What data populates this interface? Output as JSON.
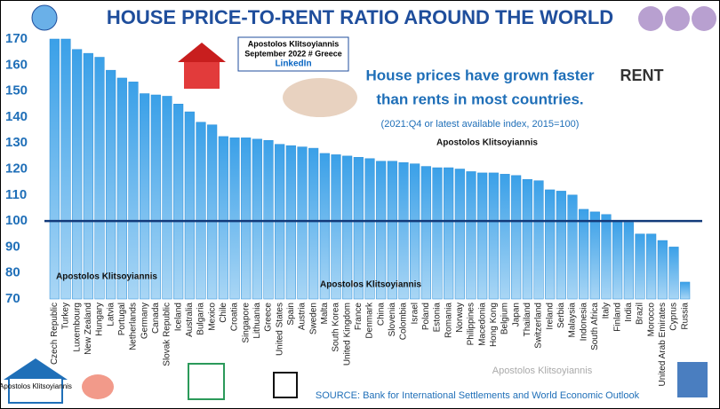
{
  "chart_data": {
    "type": "bar",
    "title": "HOUSE PRICE-TO-RENT RATIO AROUND THE WORLD",
    "annotation": "House prices have grown faster",
    "annotation_line2": "than rents in most countries.",
    "note": "(2021:Q4 or latest available index, 2015=100)",
    "source": "SOURCE: Bank for International Settlements and World Economic Outlook",
    "credit_box": [
      "Apostolos Klitsoyiannis",
      "September 2022 # Greece",
      "LinkedIn"
    ],
    "watermarks": [
      "Apostolos Klitsoyiannis",
      "Apostolos Klitsoyiannis",
      "Apostolos Klitsoyiannis",
      "Apostolos Klitsoyiannis"
    ],
    "logo_text": "Apostolos Klitsoyiannis",
    "icon_text": "RENT",
    "categories": [
      "Czech Republic",
      "Turkey",
      "Luxembourg",
      "New Zealand",
      "Hungary",
      "Latvia",
      "Portugal",
      "Netherlands",
      "Germany",
      "Canada",
      "Slovak Republic",
      "Iceland",
      "Australia",
      "Bulgaria",
      "Mexico",
      "Chile",
      "Croatia",
      "Singapore",
      "Lithuania",
      "Greece",
      "United States",
      "Spain",
      "Austria",
      "Sweden",
      "Malta",
      "South Korea",
      "United Kingdom",
      "France",
      "Denmark",
      "China",
      "Slovenia",
      "Colombia",
      "Israel",
      "Poland",
      "Estonia",
      "Romania",
      "Norway",
      "Philippines",
      "Macedonia",
      "Hong Kong",
      "Belgium",
      "Japan",
      "Thailand",
      "Switzerland",
      "Ireland",
      "Serbia",
      "Malaysia",
      "Indonesia",
      "South Africa",
      "Italy",
      "Finland",
      "India",
      "Brazil",
      "Morocco",
      "United Arab Emirates",
      "Cyprus",
      "Russia"
    ],
    "values": [
      170,
      170,
      166,
      164.5,
      163,
      158,
      155,
      153.5,
      149,
      148.5,
      148,
      145,
      142,
      138,
      137,
      132.5,
      132,
      132,
      131.5,
      131,
      129.5,
      129,
      128.5,
      128,
      126,
      125.5,
      125,
      124.5,
      124,
      123,
      123,
      122.5,
      122,
      121,
      120.5,
      120.5,
      120,
      119,
      118.5,
      118.5,
      118,
      117.5,
      116,
      115.5,
      112,
      111.5,
      110,
      104.5,
      103.5,
      102.5,
      100,
      99.5,
      95,
      95,
      92.5,
      90,
      76.5
    ],
    "color": "#2a8fd8",
    "reference_line": 100,
    "reference_color": "#123a7a",
    "ylim": [
      70,
      170
    ],
    "yticks": [
      70,
      80,
      90,
      100,
      110,
      120,
      130,
      140,
      150,
      160,
      170
    ],
    "grid": false
  }
}
